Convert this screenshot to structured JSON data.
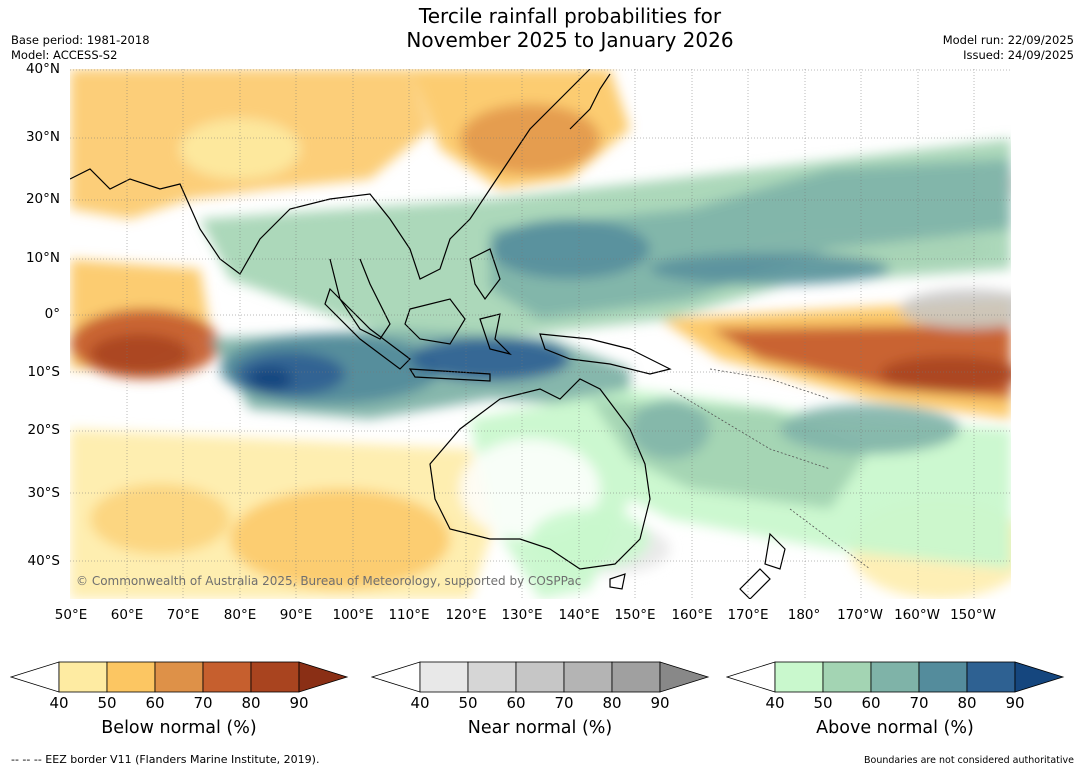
{
  "title": {
    "line1": "Tercile rainfall probabilities for",
    "line2": "November 2025 to January 2026"
  },
  "meta": {
    "base_period": "Base period: 1981-2018",
    "model": "Model: ACCESS-S2",
    "model_run": "Model run: 22/09/2025",
    "issued": "Issued: 24/09/2025"
  },
  "map": {
    "lat_labels": [
      "40°N",
      "30°N",
      "20°N",
      "10°N",
      "0°",
      "10°S",
      "20°S",
      "30°S",
      "40°S"
    ],
    "lon_labels": [
      "50°E",
      "60°E",
      "70°E",
      "80°E",
      "90°E",
      "100°E",
      "110°E",
      "120°E",
      "130°E",
      "140°E",
      "150°E",
      "160°E",
      "170°E",
      "180°",
      "170°W",
      "160°W",
      "150°W"
    ],
    "credit": "© Commonwealth of Australia 2025, Bureau of Meteorology, supported by COSPPac",
    "lat_range": [
      -46,
      40
    ],
    "lon_range": [
      50,
      215
    ]
  },
  "colorbars": [
    {
      "label": "Below normal (%)",
      "ticks": [
        "40",
        "50",
        "60",
        "70",
        "80",
        "90"
      ],
      "colors": [
        "#ffffff",
        "#feeba2",
        "#fcc662",
        "#de9148",
        "#c65f2e",
        "#a9441f",
        "#8a2f15"
      ]
    },
    {
      "label": "Near normal (%)",
      "ticks": [
        "40",
        "50",
        "60",
        "70",
        "80",
        "90"
      ],
      "colors": [
        "#ffffff",
        "#e8e8e8",
        "#d6d6d6",
        "#c6c6c6",
        "#b4b4b4",
        "#a0a0a0",
        "#888888"
      ]
    },
    {
      "label": "Above normal (%)",
      "ticks": [
        "40",
        "50",
        "60",
        "70",
        "80",
        "90"
      ],
      "colors": [
        "#ffffff",
        "#c9f8cd",
        "#a3d4b3",
        "#7fb3a8",
        "#548c9c",
        "#2e6192",
        "#15467e"
      ]
    }
  ],
  "footer": {
    "eez": "--  --  -- EEZ border V11 (Flanders Marine Institute, 2019).",
    "disclaimer": "Boundaries are not considered authoritative"
  }
}
